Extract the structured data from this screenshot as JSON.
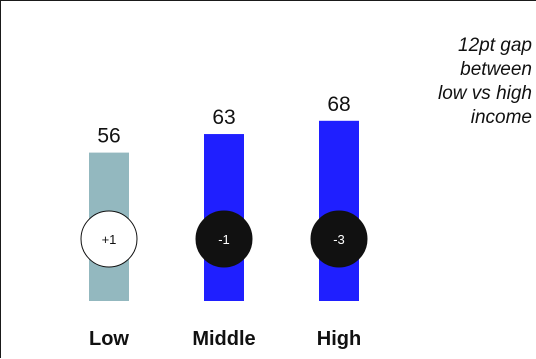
{
  "chart_data": {
    "type": "bar",
    "categories": [
      "Low",
      "Middle",
      "High"
    ],
    "values": [
      56,
      63,
      68
    ],
    "changes": [
      "+1",
      "-1",
      "-3"
    ],
    "bar_colors": [
      "#93b8bf",
      "#1f1fff",
      "#1f1fff"
    ],
    "badge_styles": [
      {
        "fill": "#ffffff",
        "stroke": "#111111",
        "text": "#111111"
      },
      {
        "fill": "#111111",
        "stroke": "#111111",
        "text": "#ffffff"
      },
      {
        "fill": "#111111",
        "stroke": "#111111",
        "text": "#ffffff"
      }
    ],
    "annotation": "12pt gap\nbetween\nlow vs high\nincome",
    "title": "",
    "xlabel": "",
    "ylabel": ""
  }
}
